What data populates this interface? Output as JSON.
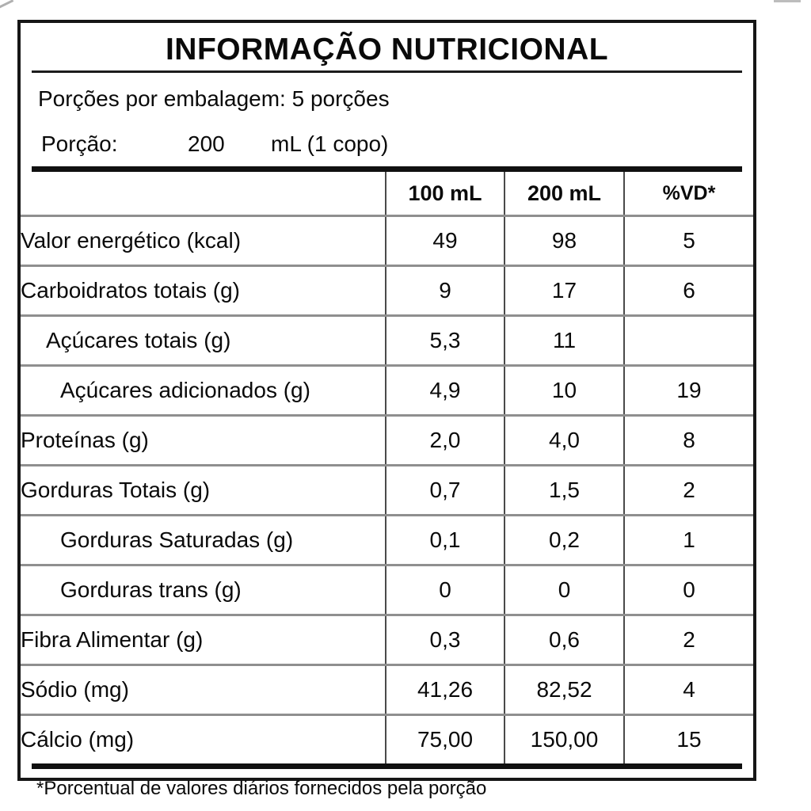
{
  "colors": {
    "border": "#161616",
    "row_separator": "#8f8f8f",
    "column_separator": "#4a4a4a",
    "text": "#0a0a0a",
    "background": "#ffffff"
  },
  "label": {
    "title": "INFORMAÇÃO NUTRICIONAL",
    "servings_per_package": "Porções por embalagem: 5 porções",
    "portion": {
      "label": "Porção:",
      "amount": "200",
      "unit": "mL (1 copo)"
    },
    "table": {
      "headers": {
        "name": "",
        "col_100ml": "100 mL",
        "col_200ml": "200 mL",
        "col_vd": "%VD*"
      },
      "rows": [
        {
          "name": "Valor energético (kcal)",
          "per_100ml": "49",
          "per_200ml": "98",
          "vd": "5"
        },
        {
          "name": "Carboidratos totais (g)",
          "per_100ml": "9",
          "per_200ml": "17",
          "vd": "6"
        },
        {
          "name": "Açúcares totais (g)",
          "per_100ml": "5,3",
          "per_200ml": "11",
          "vd": ""
        },
        {
          "name": "Açúcares adicionados (g)",
          "per_100ml": "4,9",
          "per_200ml": "10",
          "vd": "19"
        },
        {
          "name": "Proteínas (g)",
          "per_100ml": "2,0",
          "per_200ml": "4,0",
          "vd": "8"
        },
        {
          "name": "Gorduras Totais (g)",
          "per_100ml": "0,7",
          "per_200ml": "1,5",
          "vd": "2"
        },
        {
          "name": "Gorduras Saturadas (g)",
          "per_100ml": "0,1",
          "per_200ml": "0,2",
          "vd": "1"
        },
        {
          "name": "Gorduras trans (g)",
          "per_100ml": "0",
          "per_200ml": "0",
          "vd": "0"
        },
        {
          "name": "Fibra Alimentar (g)",
          "per_100ml": "0,3",
          "per_200ml": "0,6",
          "vd": "2"
        },
        {
          "name": "Sódio (mg)",
          "per_100ml": "41,26",
          "per_200ml": "82,52",
          "vd": "4"
        },
        {
          "name": "Cálcio (mg)",
          "per_100ml": "75,00",
          "per_200ml": "150,00",
          "vd": "15"
        }
      ]
    },
    "footnote": "*Porcentual de valores diários fornecidos pela porção"
  }
}
